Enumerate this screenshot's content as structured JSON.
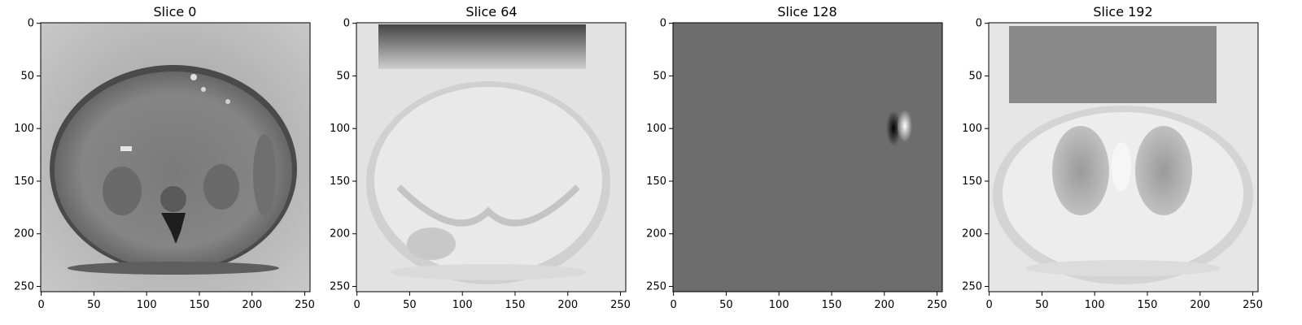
{
  "figure": {
    "panels": [
      {
        "title": "Slice 0",
        "image": "axial-mri-slice-abdomen",
        "background": "#8a8a8a",
        "x_ticks": [
          "0",
          "50",
          "100",
          "150",
          "200",
          "250"
        ],
        "y_ticks": [
          "0",
          "50",
          "100",
          "150",
          "200",
          "250"
        ]
      },
      {
        "title": "Slice 64",
        "image": "axial-mri-slice-upper-abdomen-bright",
        "background": "#e2e2e2",
        "x_ticks": [
          "0",
          "50",
          "100",
          "150",
          "200",
          "250"
        ],
        "y_ticks": [
          "0",
          "50",
          "100",
          "150",
          "200",
          "250"
        ]
      },
      {
        "title": "Slice 128",
        "image": "uniform-gray-with-dipole-artifact",
        "background": "#6d6d6d",
        "x_ticks": [
          "0",
          "50",
          "100",
          "150",
          "200",
          "250"
        ],
        "y_ticks": [
          "0",
          "50",
          "100",
          "150",
          "200",
          "250"
        ]
      },
      {
        "title": "Slice 192",
        "image": "axial-mri-slice-thorax-lungs",
        "background": "#e6e6e6",
        "x_ticks": [
          "0",
          "50",
          "100",
          "150",
          "200",
          "250"
        ],
        "y_ticks": [
          "0",
          "50",
          "100",
          "150",
          "200",
          "250"
        ]
      }
    ]
  }
}
